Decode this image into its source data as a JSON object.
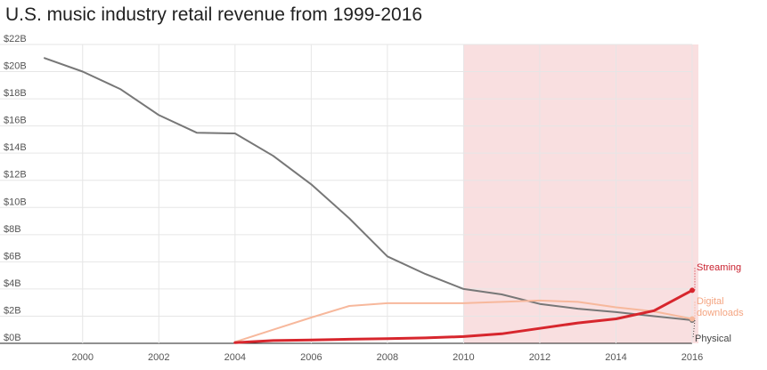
{
  "page": {
    "title": "U.S. music industry retail revenue from 1999-2016"
  },
  "chart_data": {
    "type": "line",
    "title": "U.S. music industry retail revenue from 1999-2016",
    "xlabel": "",
    "ylabel": "",
    "xlim": [
      1999,
      2016
    ],
    "ylim": [
      0,
      22
    ],
    "y_unit": "billion USD",
    "grid": true,
    "x_ticks": [
      2000,
      2002,
      2004,
      2006,
      2008,
      2010,
      2012,
      2014,
      2016
    ],
    "y_ticks": [
      0,
      2,
      4,
      6,
      8,
      10,
      12,
      14,
      16,
      18,
      20,
      22
    ],
    "y_tick_labels": [
      "$0B",
      "$2B",
      "$4B",
      "$6B",
      "$8B",
      "$10B",
      "$12B",
      "$14B",
      "$16B",
      "$18B",
      "$20B",
      "$22B"
    ],
    "highlight_range": [
      2010,
      2016
    ],
    "colors": {
      "highlight": "#f9dfe0",
      "grid": "#e6e6e6",
      "axis": "#222222",
      "tick_text": "#555555"
    },
    "series": [
      {
        "name": "Physical",
        "color": "#777777",
        "label_color": "#444444",
        "line_width": 2,
        "x": [
          1999,
          2000,
          2001,
          2002,
          2003,
          2004,
          2005,
          2006,
          2007,
          2008,
          2009,
          2010,
          2011,
          2012,
          2013,
          2014,
          2015,
          2016
        ],
        "values": [
          21.0,
          20.0,
          18.7,
          16.8,
          15.5,
          15.45,
          13.8,
          11.7,
          9.2,
          6.4,
          5.1,
          4.0,
          3.6,
          2.9,
          2.55,
          2.3,
          2.0,
          1.7
        ]
      },
      {
        "name": "Digital downloads",
        "label_lines": [
          "Digital",
          "downloads"
        ],
        "color": "#f7b89c",
        "label_color": "#f4a582",
        "line_width": 2,
        "x": [
          2004,
          2005,
          2006,
          2007,
          2008,
          2009,
          2010,
          2011,
          2012,
          2013,
          2014,
          2015,
          2016
        ],
        "values": [
          0.1,
          1.0,
          1.9,
          2.75,
          2.95,
          2.95,
          2.95,
          3.05,
          3.15,
          3.05,
          2.65,
          2.35,
          1.8
        ]
      },
      {
        "name": "Streaming",
        "color": "#d7262d",
        "label_color": "#c91f2d",
        "line_width": 3,
        "x": [
          2004,
          2005,
          2006,
          2007,
          2008,
          2009,
          2010,
          2011,
          2012,
          2013,
          2014,
          2015,
          2016
        ],
        "values": [
          0.05,
          0.2,
          0.25,
          0.3,
          0.35,
          0.4,
          0.5,
          0.7,
          1.1,
          1.5,
          1.8,
          2.4,
          3.9
        ]
      }
    ]
  }
}
